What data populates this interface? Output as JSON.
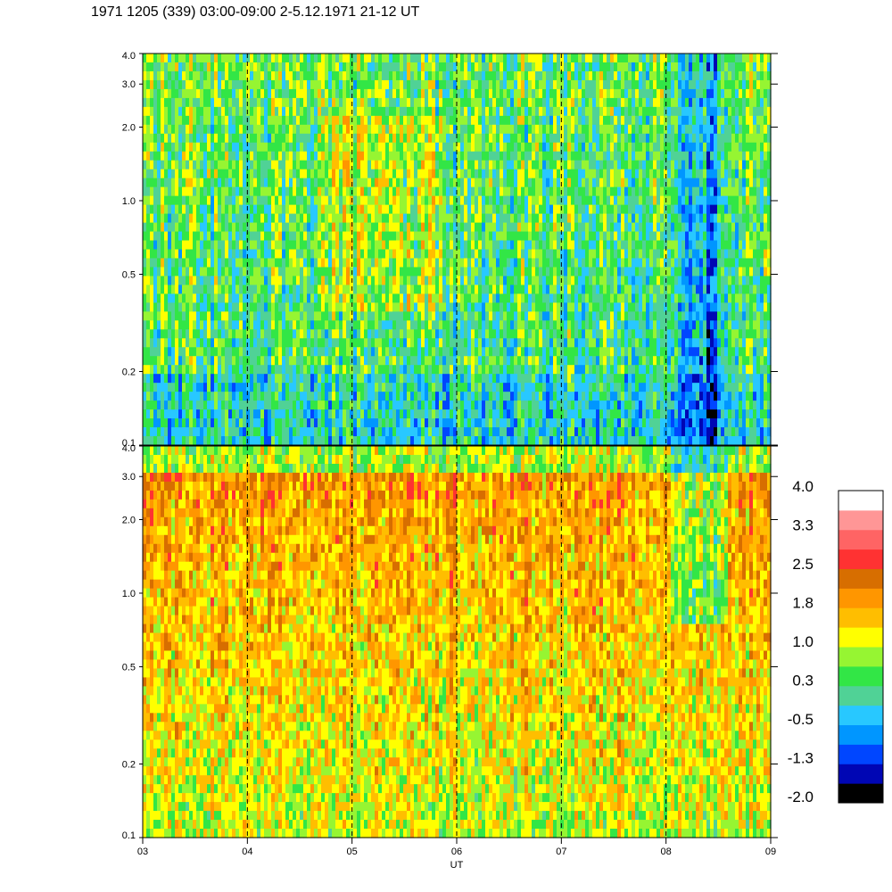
{
  "title": "1971 1205 (339) 03:00-09:00 2-5.12.1971  21-12 UT",
  "chart_data": {
    "type": "heatmap",
    "title": "1971 1205 (339) 03:00-09:00 2-5.12.1971  21-12 UT",
    "xlabel": "UT",
    "x_ticks": [
      "03",
      "04",
      "05",
      "06",
      "07",
      "08",
      "09"
    ],
    "x_range_hours": [
      3,
      9
    ],
    "x_dashed_lines_hours": [
      4,
      5,
      6,
      7,
      8
    ],
    "panels": [
      {
        "name": "upper",
        "y_scale": "log",
        "y_range": [
          0.1,
          4.0
        ],
        "y_ticks": [
          0.1,
          0.2,
          0.5,
          1.0,
          2.0,
          3.0,
          4.0
        ],
        "y_tick_labels": [
          "0.1",
          "0.2",
          "0.5",
          "1.0",
          "2.0",
          "3.0",
          "4.0"
        ],
        "typical_level_range": [
          -0.5,
          1.0
        ]
      },
      {
        "name": "lower",
        "y_scale": "log",
        "y_range": [
          0.1,
          4.0
        ],
        "y_ticks": [
          0.1,
          0.2,
          0.5,
          1.0,
          2.0,
          3.0,
          4.0
        ],
        "y_tick_labels": [
          "0.1",
          "0.2",
          "0.5",
          "1.0",
          "2.0",
          "3.0",
          "4.0"
        ],
        "typical_level_range": [
          0.3,
          2.2
        ]
      }
    ],
    "colorbar": {
      "labels": [
        "4.0",
        "3.3",
        "2.5",
        "1.8",
        "1.0",
        "0.3",
        "-0.5",
        "-1.3",
        "-2.0"
      ],
      "range": [
        -2.0,
        4.0
      ],
      "colors": [
        "#000000",
        "#0006b4",
        "#0046ff",
        "#0096ff",
        "#28c8ff",
        "#50d296",
        "#32e646",
        "#96f532",
        "#ffff00",
        "#ffbe00",
        "#ff9600",
        "#d76e00",
        "#ff3232",
        "#ff6464",
        "#ff9696",
        "#ffffff"
      ]
    }
  }
}
